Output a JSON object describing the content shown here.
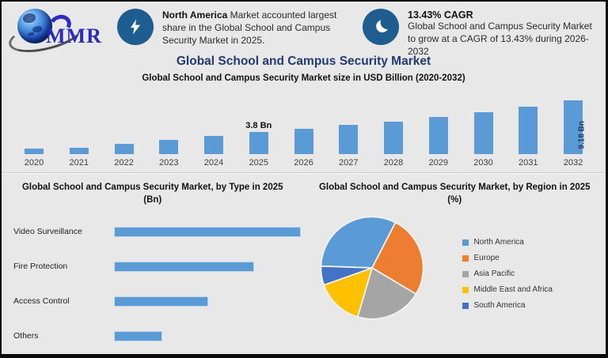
{
  "logo": {
    "text": "MMR"
  },
  "callouts": [
    {
      "icon": "lightning-bolt",
      "bold_text": "North America",
      "text": " Market accounted largest share in the Global School and Campus Security Market in 2025."
    },
    {
      "icon": "swirl-flame",
      "heading": "13.43% CAGR",
      "text": "Global School and Campus Security Market to grow at a CAGR of 13.43% during 2026-2032"
    }
  ],
  "header": {
    "title": "Global School and Campus Security Market",
    "subtitle": "Global School and Campus Security Market size in USD Billion (2020-2032)"
  },
  "colors": {
    "background": "#e8e8e8",
    "bar_blue": "#5b9bd5",
    "badge_blue": "#1e5d8f",
    "title_navy": "#223a73",
    "inside_label_navy": "#1f3864"
  },
  "chart_data": [
    {
      "type": "bar",
      "title": "Global School and Campus Security Market size in USD Billion (2020-2032)",
      "categories": [
        "2020",
        "2021",
        "2022",
        "2023",
        "2024",
        "2025",
        "2026",
        "2027",
        "2028",
        "2029",
        "2030",
        "2031",
        "2032"
      ],
      "values": [
        1.0,
        1.05,
        1.7,
        2.4,
        3.1,
        3.8,
        4.35,
        4.95,
        5.6,
        6.35,
        7.2,
        8.1,
        9.18
      ],
      "labels_above": {
        "2025": "3.8 Bn"
      },
      "labels_inside": {
        "2032": "9.18 Bn"
      },
      "bar_color": "#5b9bd5",
      "xlabel": "",
      "ylabel": "USD Billion",
      "ylim": [
        0,
        10
      ],
      "grid": false,
      "legend_position": "none"
    },
    {
      "type": "bar",
      "orientation": "horizontal",
      "title": "Global School and Campus Security Market, by Type in 2025",
      "unit_line": "(Bn)",
      "categories": [
        "Video Surveillance",
        "Fire Protection",
        "Access Control",
        "Others"
      ],
      "values": [
        1.6,
        1.2,
        0.8,
        0.4
      ],
      "bar_color": "#5b9bd5",
      "xlabel": "Bn",
      "ylabel": "",
      "xlim": [
        0,
        1.8
      ],
      "grid": false,
      "legend_position": "none"
    },
    {
      "type": "pie",
      "title": "Global School and Campus Security Market, by Region in 2025",
      "unit_line": "(%)",
      "start_angle_deg": 272,
      "slices": [
        {
          "label": "North America",
          "value": 32,
          "color": "#5b9bd5"
        },
        {
          "label": "Europe",
          "value": 26,
          "color": "#ed7d31"
        },
        {
          "label": "Asia Pacific",
          "value": 21,
          "color": "#a5a5a5"
        },
        {
          "label": "Middle East and Africa",
          "value": 15,
          "color": "#ffc000"
        },
        {
          "label": "South America",
          "value": 6,
          "color": "#4472c4"
        }
      ],
      "legend_position": "right"
    }
  ]
}
